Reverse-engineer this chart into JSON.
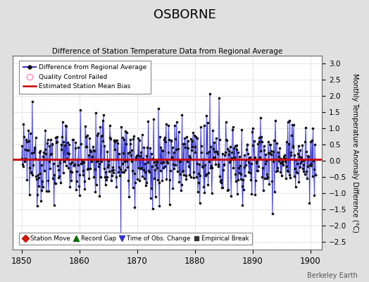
{
  "title": "OSBORNE",
  "subtitle": "Difference of Station Temperature Data from Regional Average",
  "ylabel": "Monthly Temperature Anomaly Difference (°C)",
  "xlabel_years": [
    1850,
    1860,
    1870,
    1880,
    1890,
    1900
  ],
  "xmin": 1848.5,
  "xmax": 1902.0,
  "ymin": -2.75,
  "ymax": 3.25,
  "yticks_right": [
    -2.5,
    -2,
    -1.5,
    -1,
    -0.5,
    0,
    0.5,
    1,
    1.5,
    2,
    2.5,
    3
  ],
  "bias_value": 0.05,
  "line_color": "#3333cc",
  "line_fill_color": "#aaaaff",
  "dot_color": "#111111",
  "bias_color": "#cc0000",
  "background_color": "#e0e0e0",
  "plot_bg_color": "#ffffff",
  "grid_color": "#cccccc",
  "watermark": "Berkeley Earth",
  "seed": 12345
}
